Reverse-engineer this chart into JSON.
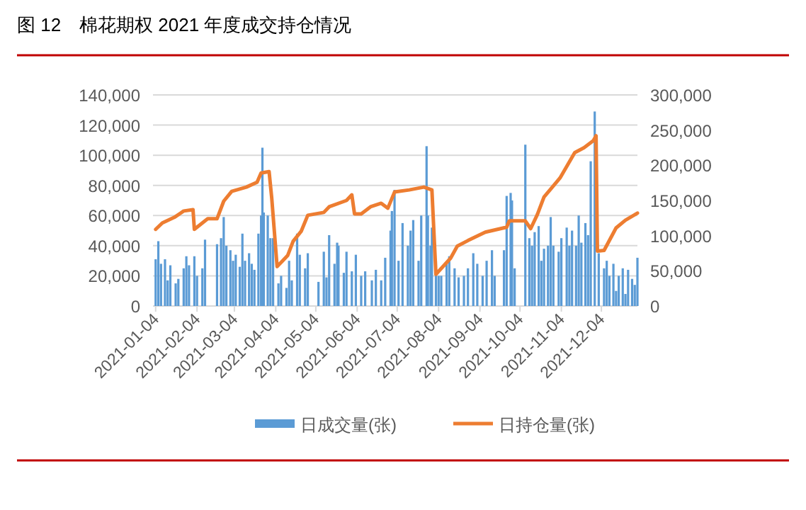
{
  "chart_data": {
    "type": "bar",
    "title": "图 12　棉花期权 2021 年度成交持仓情况",
    "xlim": [
      "2021-01-02",
      "2021-12-31"
    ],
    "xticks": [
      {
        "value": "2021-01-04",
        "label": "2021-01-04"
      },
      {
        "value": "2021-02-04",
        "label": "2021-02-04"
      },
      {
        "value": "2021-03-04",
        "label": "2021-03-04"
      },
      {
        "value": "2021-04-04",
        "label": "2021-04-04"
      },
      {
        "value": "2021-05-04",
        "label": "2021-05-04"
      },
      {
        "value": "2021-06-04",
        "label": "2021-06-04"
      },
      {
        "value": "2021-07-04",
        "label": "2021-07-04"
      },
      {
        "value": "2021-08-04",
        "label": "2021-08-04"
      },
      {
        "value": "2021-09-04",
        "label": "2021-09-04"
      },
      {
        "value": "2021-10-04",
        "label": "2021-10-04"
      },
      {
        "value": "2021-11-04",
        "label": "2021-11-04"
      },
      {
        "value": "2021-12-04",
        "label": "2021-12-04"
      }
    ],
    "ylim": [
      0,
      140000
    ],
    "yticks": [
      0,
      {
        "value": 20000,
        "label": "20,000"
      },
      {
        "value": 40000,
        "label": "40,000"
      },
      {
        "value": 60000,
        "label": "60,000"
      },
      {
        "value": 80000,
        "label": "80,000"
      },
      {
        "value": 100000,
        "label": "100,000"
      },
      {
        "value": 120000,
        "label": "120,000"
      },
      {
        "value": 140000,
        "label": "140,000"
      }
    ],
    "y2lim": [
      0,
      300000
    ],
    "y2ticks": [
      0,
      {
        "value": 50000,
        "label": "50,000"
      },
      {
        "value": 100000,
        "label": "100,000"
      },
      {
        "value": 150000,
        "label": "150,000"
      },
      {
        "value": 200000,
        "label": "200,000"
      },
      {
        "value": 250000,
        "label": "250,000"
      },
      {
        "value": 300000,
        "label": "300,000"
      }
    ],
    "grid": "y",
    "legend": "bottom",
    "series": [
      {
        "name": "日成交量(张)",
        "color": "#5b9bd5",
        "x": [
          "2021-01-04",
          "2021-01-06",
          "2021-01-08",
          "2021-01-11",
          "2021-01-13",
          "2021-01-15",
          "2021-01-19",
          "2021-01-21",
          "2021-01-25",
          "2021-01-27",
          "2021-01-29",
          "2021-02-02",
          "2021-02-04",
          "2021-02-08",
          "2021-02-10",
          "2021-02-19",
          "2021-02-22",
          "2021-02-24",
          "2021-02-26",
          "2021-03-01",
          "2021-03-03",
          "2021-03-05",
          "2021-03-08",
          "2021-03-10",
          "2021-03-12",
          "2021-03-15",
          "2021-03-17",
          "2021-03-19",
          "2021-03-22",
          "2021-03-24",
          "2021-03-25",
          "2021-03-26",
          "2021-03-29",
          "2021-03-31",
          "2021-04-02",
          "2021-04-06",
          "2021-04-08",
          "2021-04-12",
          "2021-04-14",
          "2021-04-16",
          "2021-04-20",
          "2021-04-22",
          "2021-04-26",
          "2021-04-28",
          "2021-05-06",
          "2021-05-10",
          "2021-05-12",
          "2021-05-14",
          "2021-05-18",
          "2021-05-20",
          "2021-05-21",
          "2021-05-25",
          "2021-05-27",
          "2021-05-31",
          "2021-06-03",
          "2021-06-07",
          "2021-06-10",
          "2021-06-15",
          "2021-06-18",
          "2021-06-22",
          "2021-06-25",
          "2021-06-29",
          "2021-06-30",
          "2021-07-02",
          "2021-07-05",
          "2021-07-08",
          "2021-07-12",
          "2021-07-14",
          "2021-07-16",
          "2021-07-20",
          "2021-07-22",
          "2021-07-26",
          "2021-07-27",
          "2021-07-29",
          "2021-07-30",
          "2021-08-02",
          "2021-08-04",
          "2021-08-06",
          "2021-08-10",
          "2021-08-12",
          "2021-08-16",
          "2021-08-19",
          "2021-08-23",
          "2021-08-26",
          "2021-08-30",
          "2021-09-02",
          "2021-09-06",
          "2021-09-09",
          "2021-09-13",
          "2021-09-15",
          "2021-09-22",
          "2021-09-24",
          "2021-09-27",
          "2021-09-28",
          "2021-09-30",
          "2021-10-08",
          "2021-10-11",
          "2021-10-13",
          "2021-10-15",
          "2021-10-18",
          "2021-10-20",
          "2021-10-22",
          "2021-10-25",
          "2021-10-27",
          "2021-10-29",
          "2021-11-02",
          "2021-11-04",
          "2021-11-08",
          "2021-11-10",
          "2021-11-12",
          "2021-11-15",
          "2021-11-17",
          "2021-11-19",
          "2021-11-22",
          "2021-11-24",
          "2021-11-26",
          "2021-11-29",
          "2021-12-02",
          "2021-12-06",
          "2021-12-08",
          "2021-12-10",
          "2021-12-13",
          "2021-12-15",
          "2021-12-17",
          "2021-12-20",
          "2021-12-22",
          "2021-12-24",
          "2021-12-27",
          "2021-12-29",
          "2021-12-31"
        ],
        "values": [
          31000,
          43000,
          28000,
          31000,
          17000,
          27000,
          15000,
          18000,
          25000,
          33000,
          27000,
          33000,
          20000,
          25000,
          44000,
          41000,
          45000,
          59000,
          40000,
          37000,
          30000,
          34000,
          26000,
          48000,
          30000,
          35000,
          28000,
          24000,
          48000,
          60000,
          105000,
          62000,
          60000,
          45000,
          45000,
          15000,
          20000,
          12000,
          30000,
          17000,
          48000,
          34000,
          25000,
          35000,
          16000,
          36000,
          19000,
          47000,
          28000,
          42000,
          40000,
          22000,
          36000,
          23000,
          34000,
          20000,
          23000,
          17000,
          24000,
          17000,
          32000,
          50000,
          63000,
          77000,
          30000,
          55000,
          40000,
          50000,
          57000,
          30000,
          60000,
          106000,
          60000,
          40000,
          52000,
          30000,
          20000,
          20000,
          28000,
          33000,
          25000,
          19000,
          20000,
          25000,
          35000,
          28000,
          20000,
          30000,
          37000,
          20000,
          37000,
          73000,
          75000,
          70000,
          25000,
          107000,
          45000,
          40000,
          49000,
          53000,
          30000,
          38000,
          40000,
          59000,
          40000,
          36000,
          45000,
          52000,
          40000,
          50000,
          40000,
          60000,
          42000,
          55000,
          47000,
          96000,
          129000,
          35000,
          25000,
          30000,
          20000,
          28000,
          10000,
          20000,
          25000,
          8000,
          24000,
          18000,
          14000,
          32000
        ]
      },
      {
        "name": "日持仓量(张)",
        "type": "line",
        "axis": "y2",
        "color": "#ed7d31",
        "x": [
          "2021-01-04",
          "2021-01-09",
          "2021-01-18",
          "2021-01-25",
          "2021-02-01",
          "2021-02-02",
          "2021-02-12",
          "2021-02-19",
          "2021-02-24",
          "2021-03-02",
          "2021-03-13",
          "2021-03-21",
          "2021-03-24",
          "2021-03-30",
          "2021-04-01",
          "2021-04-05",
          "2021-04-10",
          "2021-04-13",
          "2021-04-17",
          "2021-04-23",
          "2021-04-28",
          "2021-05-10",
          "2021-05-14",
          "2021-05-27",
          "2021-05-31",
          "2021-06-02",
          "2021-06-07",
          "2021-06-14",
          "2021-06-22",
          "2021-06-27",
          "2021-07-02",
          "2021-07-13",
          "2021-07-24",
          "2021-07-30",
          "2021-08-02",
          "2021-08-13",
          "2021-08-18",
          "2021-08-26",
          "2021-09-08",
          "2021-09-24",
          "2021-09-26",
          "2021-10-08",
          "2021-10-12",
          "2021-10-17",
          "2021-10-22",
          "2021-11-03",
          "2021-11-14",
          "2021-11-21",
          "2021-11-28",
          "2021-11-30",
          "2021-12-01",
          "2021-12-06",
          "2021-12-15",
          "2021-12-22",
          "2021-12-31"
        ],
        "values": [
          109000,
          118000,
          126000,
          135000,
          137000,
          109000,
          124000,
          124000,
          149000,
          163000,
          169000,
          176000,
          189000,
          191000,
          153000,
          56000,
          66000,
          72000,
          92000,
          106000,
          129000,
          133000,
          141000,
          150000,
          158000,
          131000,
          131000,
          141000,
          146000,
          139000,
          162000,
          165000,
          169000,
          165000,
          45000,
          68000,
          85000,
          93000,
          105000,
          112000,
          121000,
          121000,
          110000,
          130000,
          155000,
          182000,
          218000,
          225000,
          235000,
          242000,
          78000,
          79000,
          111000,
          122000,
          132000
        ]
      }
    ]
  }
}
